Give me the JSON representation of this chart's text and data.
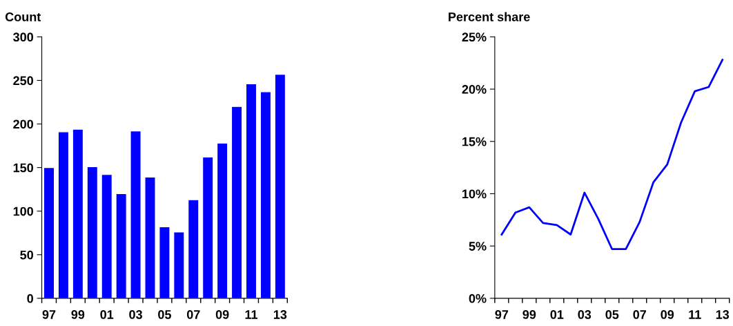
{
  "chart_data": [
    {
      "type": "bar",
      "title": "Count",
      "categories": [
        "97",
        null,
        "99",
        null,
        "01",
        null,
        "03",
        null,
        "05",
        null,
        "07",
        null,
        "09",
        null,
        "11",
        null,
        "13"
      ],
      "values": [
        150,
        191,
        194,
        151,
        142,
        120,
        192,
        139,
        82,
        76,
        113,
        162,
        178,
        220,
        246,
        237,
        257
      ],
      "color": "#0000ff",
      "ylim": [
        0,
        300
      ],
      "yticks": [
        0,
        50,
        100,
        150,
        200,
        250,
        300
      ],
      "grid": false
    },
    {
      "type": "line",
      "title": "Percent share",
      "categories": [
        "97",
        null,
        "99",
        null,
        "01",
        null,
        "03",
        null,
        "05",
        null,
        "07",
        null,
        "09",
        null,
        "11",
        null,
        "13"
      ],
      "values": [
        6.1,
        8.2,
        8.7,
        7.2,
        7.0,
        6.1,
        10.1,
        7.6,
        4.7,
        4.7,
        7.3,
        11.1,
        12.8,
        16.8,
        19.8,
        20.2,
        22.8
      ],
      "color": "#0000ff",
      "ylim": [
        0,
        25
      ],
      "yticks": [
        {
          "value": 0,
          "label": "0%"
        },
        {
          "value": 5,
          "label": "5%"
        },
        {
          "value": 10,
          "label": "10%"
        },
        {
          "value": 15,
          "label": "15%"
        },
        {
          "value": 20,
          "label": "20%"
        },
        {
          "value": 25,
          "label": "25%"
        }
      ],
      "grid": false,
      "marker": "none",
      "line_style": "solid"
    }
  ]
}
